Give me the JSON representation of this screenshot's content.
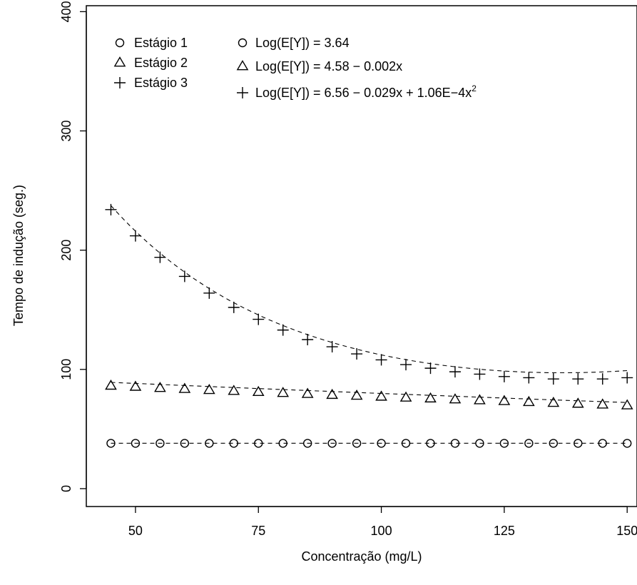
{
  "chart_data": {
    "type": "scatter",
    "title": "",
    "xlabel": "Concentração (mg/L)",
    "ylabel": "Tempo de indução (seg.)",
    "xlim": [
      40,
      152
    ],
    "ylim": [
      -15,
      405
    ],
    "xticks": [
      50,
      75,
      100,
      125,
      150
    ],
    "yticks": [
      0,
      100,
      200,
      300,
      400
    ],
    "x": [
      45,
      50,
      55,
      60,
      65,
      70,
      75,
      80,
      85,
      90,
      95,
      100,
      105,
      110,
      115,
      120,
      125,
      130,
      135,
      140,
      145,
      150
    ],
    "series": [
      {
        "name": "Estágio 1",
        "marker": "circle",
        "values": [
          38,
          38,
          38,
          38,
          38,
          38,
          38,
          38,
          38,
          38,
          38,
          38,
          38,
          38,
          38,
          38,
          38,
          38,
          38,
          38,
          38,
          38
        ]
      },
      {
        "name": "Estágio 2",
        "marker": "triangle",
        "values": [
          86.2,
          85.3,
          84.3,
          83.5,
          82.6,
          81.8,
          80.9,
          80.1,
          79.3,
          78.5,
          77.8,
          77.0,
          76.2,
          75.5,
          74.7,
          74.0,
          73.3,
          72.5,
          71.8,
          71.1,
          70.4,
          69.7
        ]
      },
      {
        "name": "Estágio 3",
        "marker": "plus",
        "values": [
          234,
          212,
          194,
          178,
          164,
          152,
          142,
          133,
          125,
          119,
          113,
          108,
          104,
          101,
          98,
          96,
          94,
          93,
          92,
          92,
          92,
          93
        ]
      }
    ],
    "fit_lines": [
      {
        "series": "Estágio 1",
        "style": "dashed"
      },
      {
        "series": "Estágio 2",
        "style": "dashed"
      },
      {
        "series": "Estágio 3",
        "style": "dashed"
      }
    ],
    "legend": {
      "placement": "top-left",
      "entries": [
        {
          "marker": "circle",
          "label": "Estágio 1"
        },
        {
          "marker": "triangle",
          "label": "Estágio 2"
        },
        {
          "marker": "plus",
          "label": "Estágio 3"
        }
      ]
    },
    "legend2": {
      "placement": "top",
      "entries": [
        {
          "marker": "circle",
          "label": "Log(E[Y]) = 3.64"
        },
        {
          "marker": "triangle",
          "label": "Log(E[Y]) = 4.58 − 0.002x"
        },
        {
          "marker": "plus",
          "label_main": "Log(E[Y]) = 6.56 − 0.029x + 1.06E−4x",
          "label_sup": "2"
        }
      ]
    },
    "grid": false,
    "colors": {
      "marks": "#000000",
      "background": "#ffffff"
    }
  }
}
